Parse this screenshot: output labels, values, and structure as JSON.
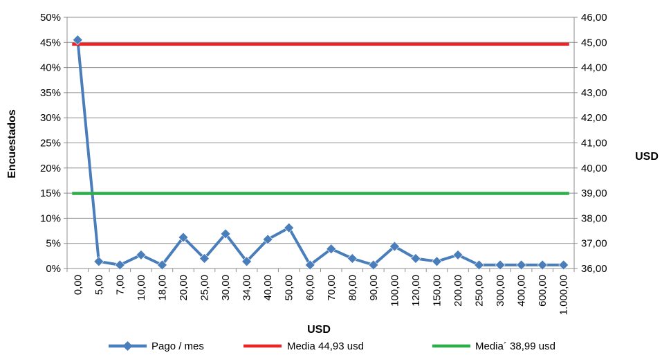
{
  "chart_data": {
    "type": "line",
    "title": "",
    "categories": [
      "0,00",
      "5,00",
      "7,00",
      "10,00",
      "18,00",
      "20,00",
      "25,00",
      "30,00",
      "34,00",
      "40,00",
      "50,00",
      "60,00",
      "70,00",
      "80,00",
      "90,00",
      "100,00",
      "120,00",
      "150,00",
      "200,00",
      "250,00",
      "300,00",
      "400,00",
      "600,00",
      "1.000,00"
    ],
    "xlabel": "USD",
    "ylabel_left": "Encuestados",
    "ylabel_right": "USD",
    "y_left": {
      "lim": [
        0,
        50
      ],
      "ticks": [
        0,
        5,
        10,
        15,
        20,
        25,
        30,
        35,
        40,
        45,
        50
      ],
      "tick_labels": [
        "0%",
        "5%",
        "10%",
        "15%",
        "20%",
        "25%",
        "30%",
        "35%",
        "40%",
        "45%",
        "50%"
      ]
    },
    "y_right": {
      "lim": [
        36,
        46
      ],
      "ticks": [
        36,
        37,
        38,
        39,
        40,
        41,
        42,
        43,
        44,
        45,
        46
      ],
      "tick_labels": [
        "36,00",
        "37,00",
        "38,00",
        "39,00",
        "40,00",
        "41,00",
        "42,00",
        "43,00",
        "44,00",
        "45,00",
        "46,00"
      ]
    },
    "grid": true,
    "legend_position": "bottom",
    "series": [
      {
        "name": "Pago / mes",
        "axis": "left",
        "color": "#4a7ebb",
        "marker": "diamond",
        "values": [
          45.5,
          1.4,
          0.7,
          2.7,
          0.7,
          6.2,
          2.0,
          6.9,
          1.4,
          5.8,
          8.1,
          0.7,
          3.9,
          2.0,
          0.7,
          4.4,
          2.0,
          1.4,
          2.7,
          0.7,
          0.7,
          0.7,
          0.7,
          0.7
        ]
      },
      {
        "name": "Media 44,93 usd",
        "axis": "right",
        "color": "#e8262a",
        "marker": "none",
        "value": 44.93
      },
      {
        "name": "Media´ 38,99 usd",
        "axis": "right",
        "color": "#2eae4a",
        "marker": "none",
        "value": 38.99
      }
    ]
  }
}
